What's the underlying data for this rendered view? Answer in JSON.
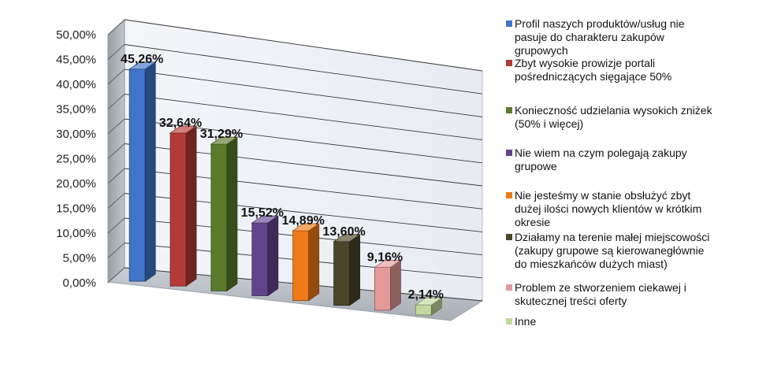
{
  "chart_data": {
    "type": "bar",
    "title": "",
    "xlabel": "",
    "ylabel": "",
    "ylim": [
      0,
      50
    ],
    "y_ticks": [
      "0,00%",
      "5,00%",
      "10,00%",
      "15,00%",
      "20,00%",
      "25,00%",
      "30,00%",
      "35,00%",
      "40,00%",
      "45,00%",
      "50,00%"
    ],
    "grid": true,
    "legend_position": "right",
    "style": "3d-perspective",
    "categories": [
      "Profil naszych produktów/usług nie pasuje do charakteru zakupów grupowych",
      "Zbyt wysokie prowizje portali pośredniczących sięgające 50%",
      "Konieczność udzielania wysokich zniżek (50% i więcej)",
      "Nie wiem na czym polegają zakupy grupowe",
      "Nie jesteśmy w stanie obsłużyć zbyt dużej ilości nowych klientów w krótkim okresie",
      "Działamy na terenie małej miejscowości (zakupy grupowe są kierowane głównie do mieszkańców dużych miast)",
      "Problem ze stworzeniem ciekawej i skutecznej treści oferty",
      "Inne"
    ],
    "legend_lines": [
      [
        "Profil naszych produktów/usług nie",
        "pasuje do charakteru zakupów",
        "grupowych"
      ],
      [
        "Zbyt wysokie prowizje portali",
        "pośredniczących sięgające 50%"
      ],
      [
        "Konieczność udzielania wysokich zniżek",
        "(50% i więcej)"
      ],
      [
        "Nie wiem na czym polegają zakupy",
        "grupowe"
      ],
      [
        "Nie jesteśmy w stanie obsłużyć zbyt",
        "dużej ilości nowych klientów w krótkim",
        "okresie"
      ],
      [
        "Działamy na terenie małej miejscowości",
        "(zakupy grupowe są kierowanegłównie",
        "do mieszkańców dużych miast)"
      ],
      [
        "Problem ze stworzeniem ciekawej i",
        "skutecznej treści oferty"
      ],
      [
        "Inne"
      ]
    ],
    "values": [
      45.26,
      32.64,
      31.29,
      15.52,
      14.89,
      13.6,
      9.16,
      2.14
    ],
    "data_labels": [
      "45,26%",
      "32,64%",
      "31,29%",
      "15,52%",
      "14,89%",
      "13,60%",
      "9,16%",
      "2,14%"
    ],
    "colors": [
      "#3f75c8",
      "#b43a36",
      "#5a7a2c",
      "#62448e",
      "#ee7a18",
      "#4b4628",
      "#e59a9a",
      "#c3d9a0"
    ]
  }
}
